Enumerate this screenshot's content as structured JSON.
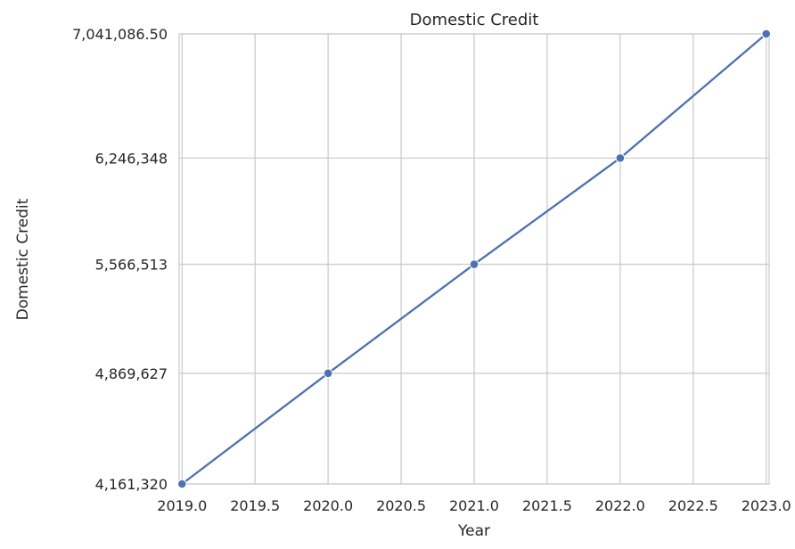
{
  "chart_data": {
    "type": "line",
    "title": "Domestic Credit",
    "xlabel": "Year",
    "ylabel": "Domestic Credit",
    "x": [
      2019,
      2020,
      2021,
      2022,
      2023
    ],
    "series": [
      {
        "values": [
          4161320,
          4869627,
          5566513,
          6246348,
          7041086.5
        ]
      }
    ],
    "xlim": [
      2018.98,
      2023.02
    ],
    "ylim": [
      4161320,
      7041086.5
    ],
    "x_ticks": [
      2019.0,
      2019.5,
      2020.0,
      2020.5,
      2021.0,
      2021.5,
      2022.0,
      2022.5,
      2023.0
    ],
    "x_tick_labels": [
      "2019.0",
      "2019.5",
      "2020.0",
      "2020.5",
      "2021.0",
      "2021.5",
      "2022.0",
      "2022.5",
      "2023.0"
    ],
    "y_ticks": [
      4161320,
      4869627,
      5566513,
      6246348,
      7041086.5
    ],
    "y_tick_labels": [
      "4,161,320",
      "4,869,627",
      "5,566,513",
      "6,246,348",
      "7,041,086.50"
    ],
    "grid": true,
    "line_color": "#4c72b0",
    "grid_color": "#cccccc",
    "spine_color": "#cccccc"
  }
}
